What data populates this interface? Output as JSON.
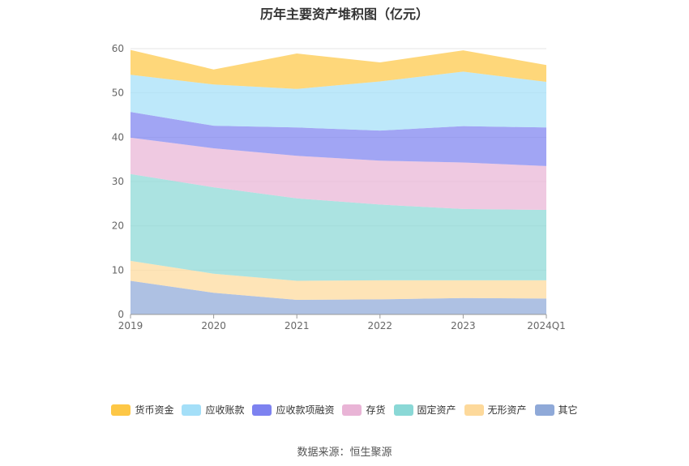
{
  "chart_data": {
    "type": "area",
    "stacked": true,
    "title": "历年主要资产堆积图（亿元）",
    "categories": [
      "2019",
      "2020",
      "2021",
      "2022",
      "2023",
      "2024Q1"
    ],
    "ylim": [
      0,
      60
    ],
    "yticks": [
      "0",
      "10",
      "20",
      "30",
      "40",
      "50",
      "60"
    ],
    "grid": true,
    "legend_position": "bottom",
    "series": [
      {
        "name": "其它",
        "color": "#8fa9d8",
        "values": [
          7.6,
          4.9,
          3.3,
          3.4,
          3.7,
          3.6
        ]
      },
      {
        "name": "无形资产",
        "color": "#fdd99b",
        "values": [
          4.5,
          4.3,
          4.3,
          4.3,
          4.0,
          4.1
        ]
      },
      {
        "name": "固定资产",
        "color": "#8ad8d6",
        "values": [
          19.6,
          19.5,
          18.6,
          17.1,
          16.1,
          15.9
        ]
      },
      {
        "name": "存货",
        "color": "#e9b4d6",
        "values": [
          8.2,
          8.8,
          9.6,
          9.9,
          10.5,
          9.9
        ]
      },
      {
        "name": "应收款项融资",
        "color": "#7d82f0",
        "values": [
          5.8,
          5.1,
          6.4,
          6.8,
          8.2,
          8.7
        ]
      },
      {
        "name": "应收账款",
        "color": "#a4dff8",
        "values": [
          8.4,
          9.3,
          8.7,
          11.1,
          12.3,
          10.3
        ]
      },
      {
        "name": "货币资金",
        "color": "#fdc746",
        "values": [
          5.6,
          3.4,
          8.0,
          4.3,
          4.8,
          3.8
        ]
      }
    ],
    "legend_order": [
      "货币资金",
      "应收账款",
      "应收款项融资",
      "存货",
      "固定资产",
      "无形资产",
      "其它"
    ]
  },
  "source": "数据来源：恒生聚源"
}
